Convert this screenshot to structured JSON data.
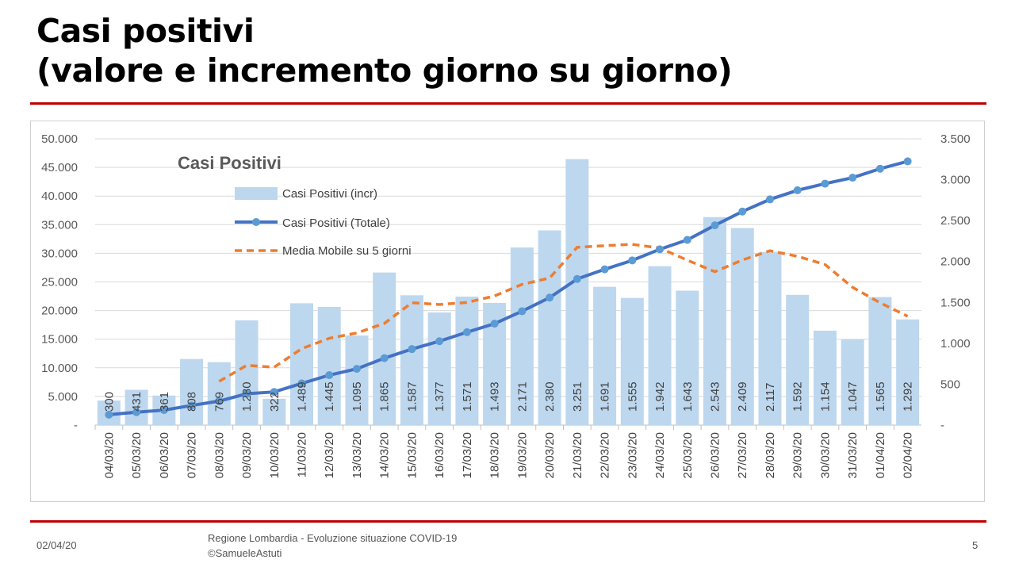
{
  "slide": {
    "title_line1": "Casi positivi",
    "title_line2": "(valore e incremento giorno su giorno)",
    "date": "02/04/20",
    "footer_line1": "Regione Lombardia - Evoluzione situazione COVID-19",
    "footer_line2": "©SamueleAstuti",
    "page": "5"
  },
  "chart_data": {
    "type": "bar+line",
    "title": "Casi Positivi",
    "categories": [
      "04/03/20",
      "05/03/20",
      "06/03/20",
      "07/03/20",
      "08/03/20",
      "09/03/20",
      "10/03/20",
      "11/03/20",
      "12/03/20",
      "13/03/20",
      "14/03/20",
      "15/03/20",
      "16/03/20",
      "17/03/20",
      "18/03/20",
      "19/03/20",
      "20/03/20",
      "21/03/20",
      "22/03/20",
      "23/03/20",
      "24/03/20",
      "25/03/20",
      "26/03/20",
      "27/03/20",
      "28/03/20",
      "29/03/20",
      "30/03/20",
      "31/03/20",
      "01/04/20",
      "02/04/20"
    ],
    "series": [
      {
        "name": "Casi Positivi (incr)",
        "axis": "right",
        "kind": "bar",
        "color": "#bdd7ee",
        "values": [
          300,
          431,
          361,
          808,
          769,
          1280,
          322,
          1489,
          1445,
          1095,
          1865,
          1587,
          1377,
          1571,
          1493,
          2171,
          2380,
          3251,
          1691,
          1555,
          1942,
          1643,
          2543,
          2409,
          2117,
          1592,
          1154,
          1047,
          1565,
          1292
        ],
        "labels": [
          "300",
          "431",
          "361",
          "808",
          "769",
          "1.280",
          "322",
          "1.489",
          "1.445",
          "1.095",
          "1.865",
          "1.587",
          "1.377",
          "1.571",
          "1.493",
          "2.171",
          "2.380",
          "3.251",
          "1.691",
          "1.555",
          "1.942",
          "1.643",
          "2.543",
          "2.409",
          "2.117",
          "1.592",
          "1.154",
          "1.047",
          "1.565",
          "1.292"
        ]
      },
      {
        "name": "Casi Positivi (Totale)",
        "axis": "left",
        "kind": "line",
        "color": "#4472c4",
        "values": [
          1820,
          2251,
          2612,
          3420,
          4189,
          5469,
          5791,
          7280,
          8725,
          9820,
          11685,
          13272,
          14649,
          16220,
          17713,
          19884,
          22264,
          25515,
          27206,
          28761,
          30703,
          32346,
          34889,
          37298,
          39415,
          41007,
          42161,
          43208,
          44773,
          46065
        ]
      },
      {
        "name": "Media Mobile su 5 giorni",
        "axis": "right",
        "kind": "dashed-line",
        "color": "#ed7d31",
        "values": [
          null,
          null,
          null,
          null,
          534,
          730,
          708,
          934,
          1061,
          1126,
          1243,
          1496,
          1474,
          1499,
          1579,
          1720,
          1798,
          2173,
          2193,
          2210,
          2164,
          2016,
          1875,
          2018,
          2131,
          2063,
          1963,
          1684,
          1495,
          1330
        ]
      }
    ],
    "left_axis": {
      "ylim": [
        0,
        50000
      ],
      "ticks": [
        "-",
        "5.000",
        "10.000",
        "15.000",
        "20.000",
        "25.000",
        "30.000",
        "35.000",
        "40.000",
        "45.000",
        "50.000"
      ]
    },
    "right_axis": {
      "ylim": [
        0,
        3500
      ],
      "ticks": [
        "-",
        "500",
        "1.000",
        "1.500",
        "2.000",
        "2.500",
        "3.000",
        "3.500"
      ]
    },
    "grid": true,
    "legend": "top-left"
  }
}
